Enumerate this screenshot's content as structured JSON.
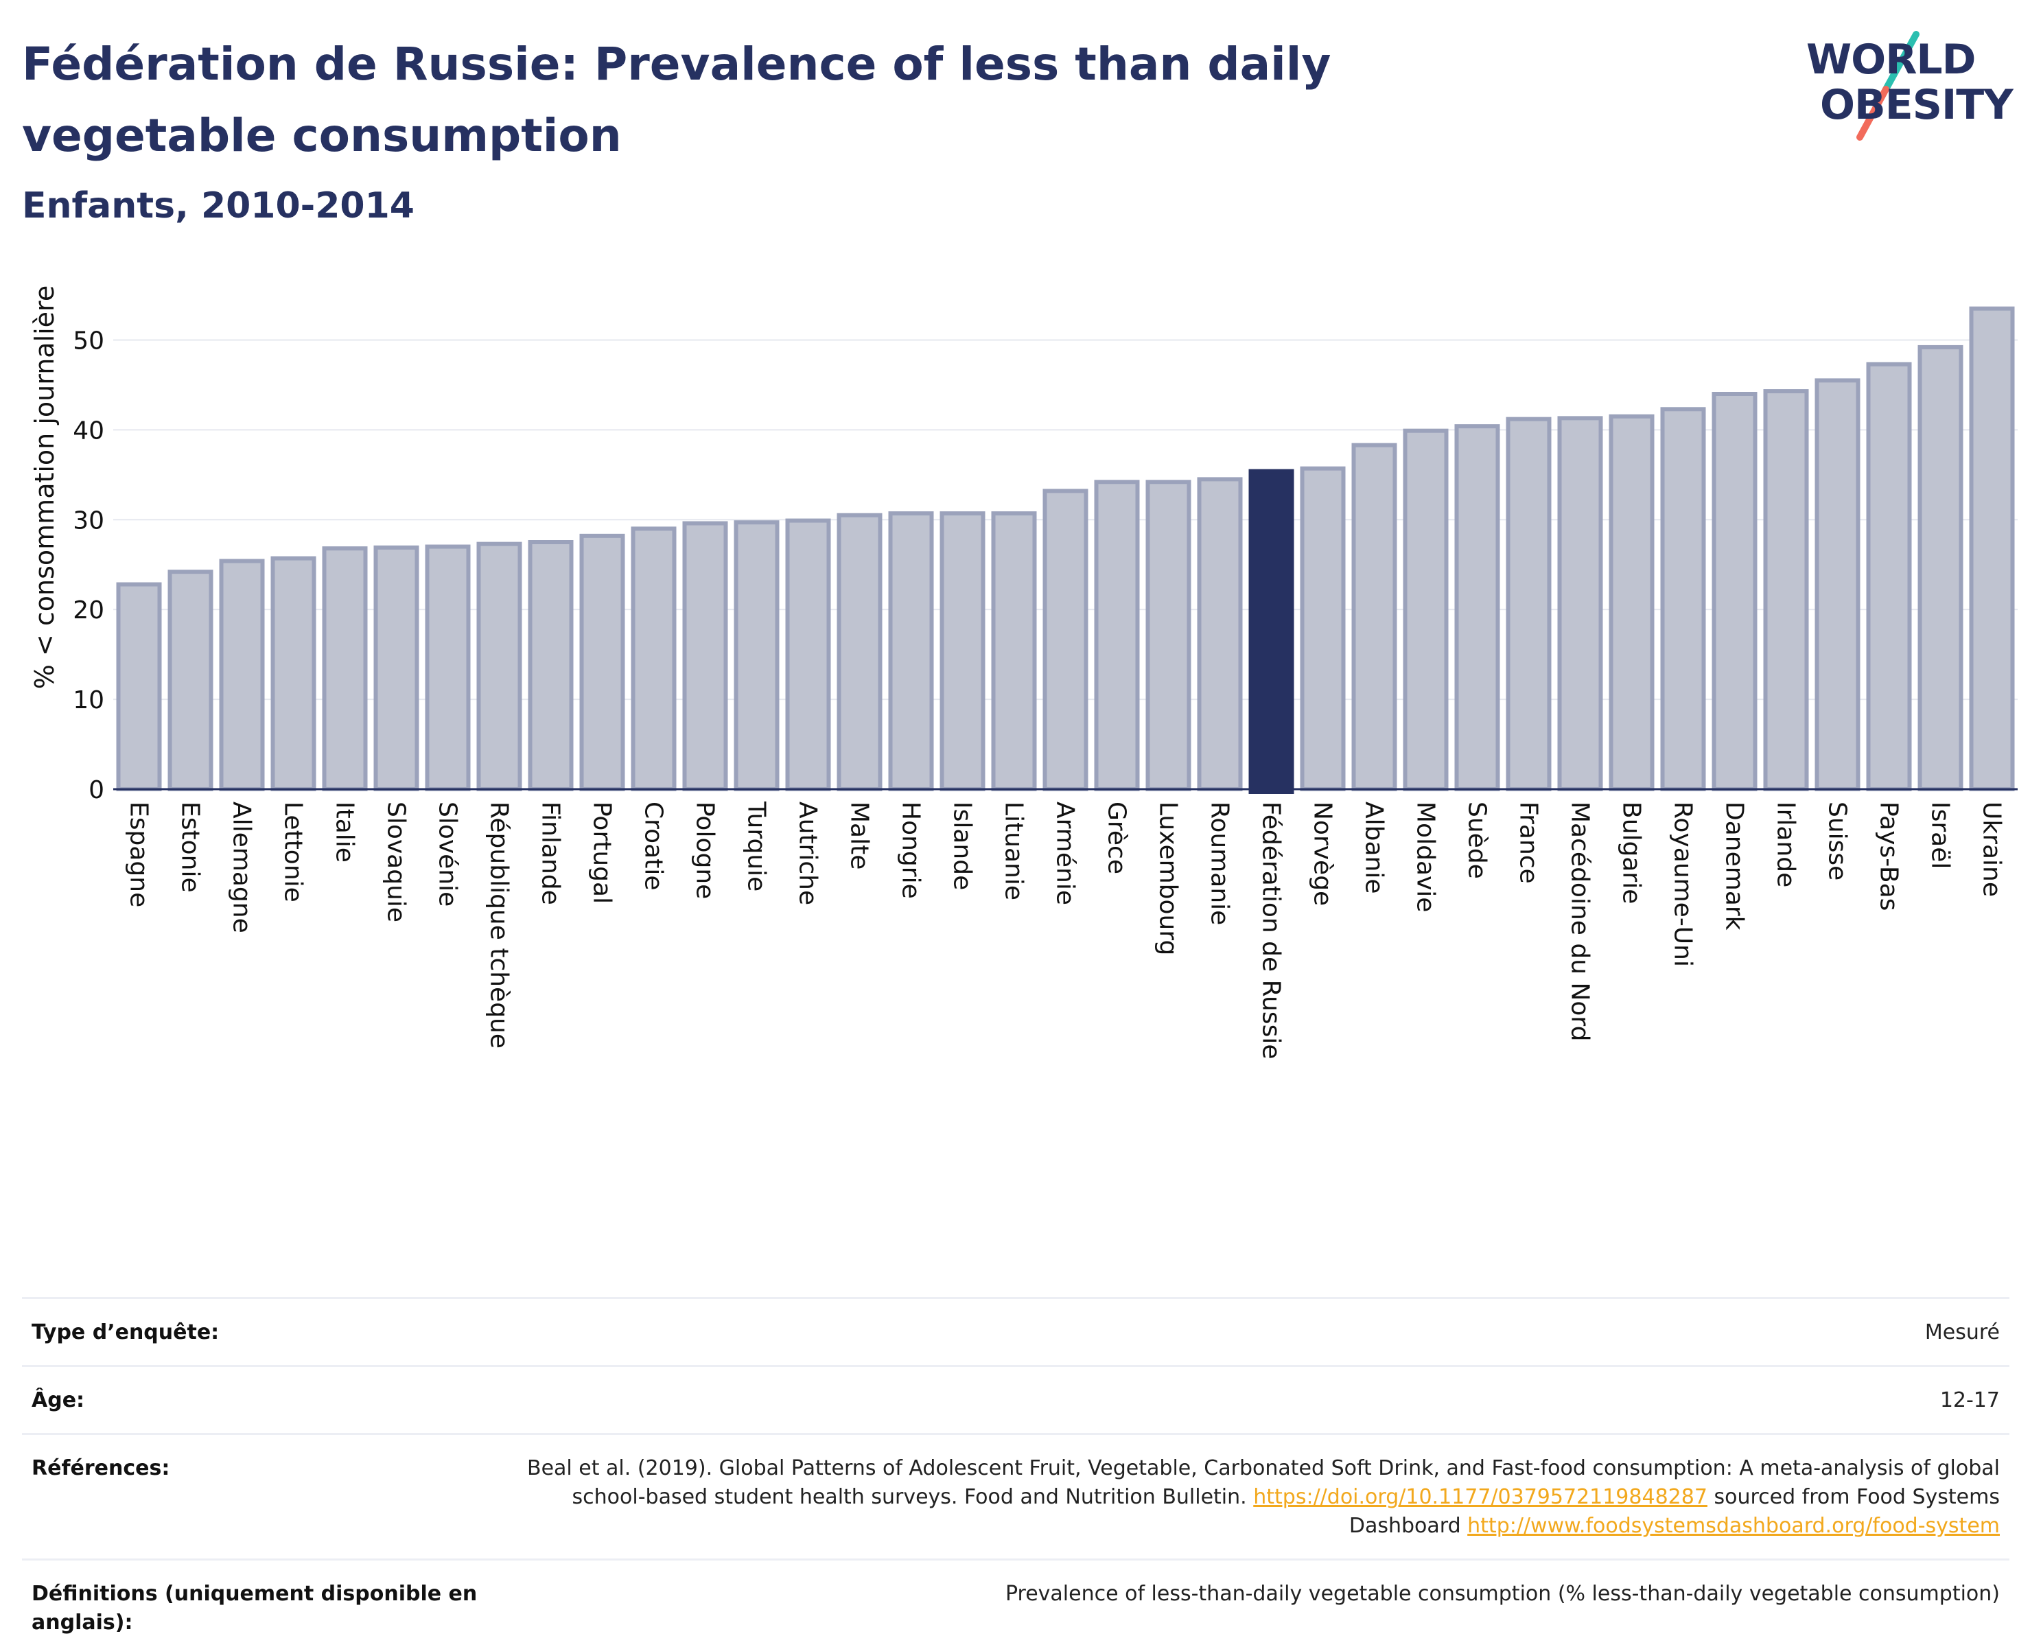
{
  "header": {
    "title": "Fédération de Russie: Prevalence of less than daily vegetable consumption",
    "subtitle": "Enfants, 2010-2014"
  },
  "logo": {
    "line1": "WORLD",
    "line2": "OBESITY",
    "accent_colors": [
      "#2bbfb0",
      "#f26b5b"
    ]
  },
  "chart_data": {
    "type": "bar",
    "ylabel": "% < consommation journalière",
    "ylim": [
      0,
      55
    ],
    "yticks": [
      0,
      10,
      20,
      30,
      40,
      50
    ],
    "grid": true,
    "highlight": "Fédération de Russie",
    "colors": {
      "bar": "#bfc3d0",
      "bar_border": "#9ba2bb",
      "highlight": "#263161",
      "grid": "#e6e8ef"
    },
    "categories": [
      "Espagne",
      "Estonie",
      "Allemagne",
      "Lettonie",
      "Italie",
      "Slovaquie",
      "Slovénie",
      "République tchèque",
      "Finlande",
      "Portugal",
      "Croatie",
      "Pologne",
      "Turquie",
      "Autriche",
      "Malte",
      "Hongrie",
      "Islande",
      "Lituanie",
      "Arménie",
      "Grèce",
      "Luxembourg",
      "Roumanie",
      "Fédération de Russie",
      "Norvège",
      "Albanie",
      "Moldavie",
      "Suède",
      "France",
      "Macédoine du Nord",
      "Bulgarie",
      "Royaume-Uni",
      "Danemark",
      "Irlande",
      "Suisse",
      "Pays-Bas",
      "Israël",
      "Ukraine"
    ],
    "values": [
      22.8,
      24.2,
      25.4,
      25.7,
      26.8,
      26.9,
      27.0,
      27.3,
      27.5,
      28.2,
      29.0,
      29.6,
      29.7,
      29.9,
      30.5,
      30.7,
      30.7,
      30.7,
      33.2,
      34.2,
      34.2,
      34.5,
      35.4,
      35.7,
      38.3,
      39.9,
      40.4,
      41.2,
      41.3,
      41.5,
      42.3,
      44.0,
      44.3,
      45.5,
      47.3,
      49.2,
      53.5
    ]
  },
  "meta": {
    "rows": [
      {
        "key": "Type d’enquête:",
        "value": "Mesuré"
      },
      {
        "key": "Âge:",
        "value": "12-17"
      },
      {
        "key": "Références:",
        "value": "Beal et al. (2019). Global Patterns of Adolescent Fruit, Vegetable, Carbonated Soft Drink, and Fast-food consumption: A meta-analysis of global school-based student health surveys. Food and Nutrition Bulletin.",
        "link1": "https://doi.org/10.1177/0379572119848287",
        "mid": " sourced from Food Systems Dashboard ",
        "link2": "http://www.foodsystemsdashboard.org/food-system"
      },
      {
        "key": "Définitions (uniquement disponible en anglais):",
        "value": "Prevalence of less-than-daily vegetable consumption (% less-than-daily vegetable consumption)"
      }
    ]
  }
}
